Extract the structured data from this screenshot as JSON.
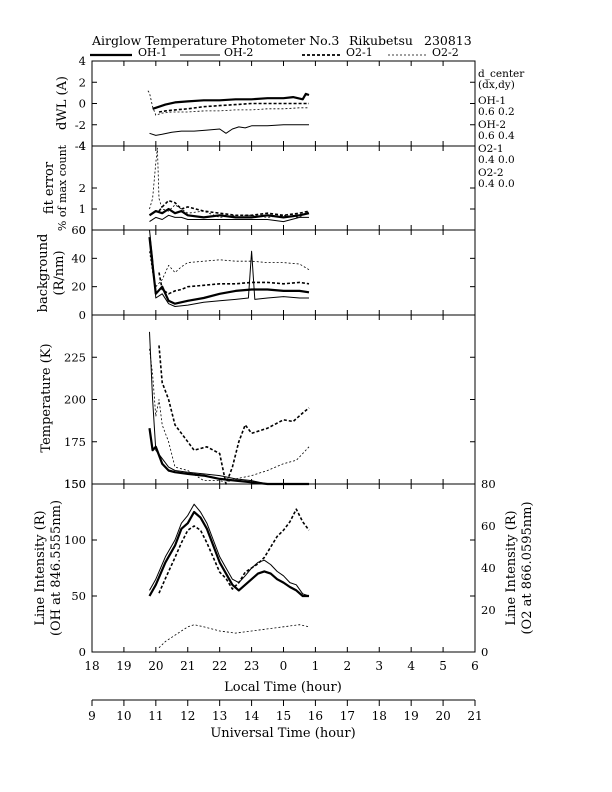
{
  "header": {
    "title": "Airglow Temperature Photometer No.3",
    "site": "Rikubetsu",
    "date": "230813"
  },
  "legend": {
    "items": [
      {
        "label": "OH-1",
        "style": "solid-thick"
      },
      {
        "label": "OH-2",
        "style": "solid-thin"
      },
      {
        "label": "O2-1",
        "style": "dashed-thick"
      },
      {
        "label": "O2-2",
        "style": "dashed-thin"
      }
    ]
  },
  "side_info": {
    "lines": [
      "d_center",
      "(dx,dy)",
      "OH-1",
      "0.6  0.2",
      "OH-2",
      "0.6  0.4",
      "O2-1",
      "0.4  0.0",
      "O2-2",
      "0.4  0.0"
    ]
  },
  "chart_data": {
    "type": "line",
    "x_axis_local": {
      "label": "Local Time (hour)",
      "range": [
        18,
        30
      ],
      "tick_labels": [
        "18",
        "19",
        "20",
        "21",
        "22",
        "23",
        "0",
        "1",
        "2",
        "3",
        "4",
        "5",
        "6"
      ]
    },
    "x_axis_universal": {
      "label": "Universal Time (hour)",
      "tick_labels": [
        "9",
        "10",
        "11",
        "12",
        "13",
        "14",
        "15",
        "16",
        "17",
        "18",
        "19",
        "20",
        "21"
      ]
    },
    "panels": [
      {
        "id": "dwl",
        "ylabel": "dWL (A)",
        "ylim": [
          -4,
          4
        ],
        "y_ticks": [
          "4",
          "2",
          "0",
          "-2",
          "-4"
        ],
        "series": [
          {
            "name": "OH-1",
            "style": "solid-thick",
            "x": [
              19.9,
              20.0,
              20.3,
              20.6,
              21.0,
              21.5,
              22.0,
              22.5,
              23.0,
              23.5,
              24.0,
              24.3,
              24.6,
              24.7,
              24.8
            ],
            "y": [
              -0.5,
              -0.4,
              -0.1,
              0.1,
              0.2,
              0.3,
              0.3,
              0.4,
              0.4,
              0.5,
              0.5,
              0.6,
              0.4,
              0.9,
              0.8
            ]
          },
          {
            "name": "OH-2",
            "style": "solid-thin",
            "x": [
              19.8,
              20.0,
              20.2,
              20.5,
              20.8,
              21.2,
              21.6,
              22.0,
              22.2,
              22.4,
              22.6,
              22.8,
              23.0,
              23.5,
              24.0,
              24.5,
              24.8
            ],
            "y": [
              -2.8,
              -3.0,
              -2.9,
              -2.7,
              -2.6,
              -2.6,
              -2.5,
              -2.4,
              -2.8,
              -2.4,
              -2.2,
              -2.3,
              -2.1,
              -2.1,
              -2.0,
              -2.0,
              -2.0
            ]
          },
          {
            "name": "O2-1",
            "style": "dashed-thick",
            "x": [
              20.1,
              20.3,
              20.6,
              21.0,
              21.5,
              22.0,
              22.5,
              23.0,
              23.5,
              24.0,
              24.5,
              24.8
            ],
            "y": [
              -0.8,
              -0.7,
              -0.6,
              -0.5,
              -0.3,
              -0.2,
              -0.1,
              0.0,
              0.0,
              0.0,
              0.0,
              0.0
            ]
          },
          {
            "name": "O2-2",
            "style": "dashed-thin",
            "x": [
              19.75,
              19.8,
              19.9,
              20.0,
              20.2,
              20.5,
              21.0,
              21.5,
              22.0,
              22.5,
              23.0,
              23.5,
              24.0,
              24.5,
              24.8
            ],
            "y": [
              1.2,
              1.0,
              -0.3,
              -1.1,
              -0.9,
              -0.8,
              -0.8,
              -0.7,
              -0.7,
              -0.6,
              -0.6,
              -0.5,
              -0.5,
              -0.4,
              -0.4
            ]
          }
        ]
      },
      {
        "id": "fiterror",
        "ylabel": [
          "fit error",
          "% of max count"
        ],
        "ylim": [
          0,
          4
        ],
        "y_ticks": [
          "4",
          "2",
          "1",
          "0"
        ],
        "y_tick_values": [
          4,
          2,
          1,
          0
        ],
        "series": [
          {
            "name": "OH-1",
            "style": "solid-thick",
            "x": [
              19.8,
              20.0,
              20.2,
              20.4,
              20.6,
              20.8,
              21.0,
              21.5,
              22.0,
              22.5,
              23.0,
              23.5,
              24.0,
              24.5,
              24.8
            ],
            "y": [
              0.7,
              0.9,
              0.8,
              1.0,
              0.8,
              0.9,
              0.7,
              0.6,
              0.7,
              0.6,
              0.6,
              0.7,
              0.6,
              0.7,
              0.8
            ]
          },
          {
            "name": "OH-2",
            "style": "solid-thin",
            "x": [
              19.8,
              20.0,
              20.2,
              20.4,
              20.6,
              20.8,
              21.0,
              21.5,
              22.0,
              22.5,
              23.0,
              23.5,
              24.0,
              24.5,
              24.8
            ],
            "y": [
              0.4,
              0.6,
              0.5,
              0.7,
              0.6,
              0.6,
              0.5,
              0.5,
              0.5,
              0.5,
              0.5,
              0.5,
              0.4,
              0.6,
              0.6
            ]
          },
          {
            "name": "O2-1",
            "style": "dashed-thick",
            "x": [
              20.1,
              20.2,
              20.4,
              20.6,
              20.8,
              21.0,
              21.5,
              22.0,
              22.5,
              23.0,
              23.5,
              24.0,
              24.5,
              24.8
            ],
            "y": [
              0.9,
              1.1,
              1.4,
              1.3,
              1.0,
              1.1,
              0.9,
              0.8,
              0.7,
              0.7,
              0.8,
              0.7,
              0.8,
              0.9
            ]
          },
          {
            "name": "O2-2",
            "style": "dashed-thin",
            "x": [
              19.8,
              19.9,
              20.0,
              20.05,
              20.1,
              20.2,
              20.4,
              20.6,
              20.8,
              21.0,
              21.5,
              22.0,
              22.5,
              23.0,
              23.5,
              24.0,
              24.5,
              24.8
            ],
            "y": [
              1.0,
              1.5,
              3.2,
              3.9,
              1.5,
              1.0,
              0.9,
              1.2,
              1.0,
              0.8,
              0.9,
              0.6,
              0.7,
              0.7,
              0.6,
              0.7,
              0.6,
              0.9
            ]
          }
        ]
      },
      {
        "id": "background",
        "ylabel": [
          "background",
          "(R/nm)"
        ],
        "ylim": [
          0,
          60
        ],
        "y_ticks": [
          "60",
          "40",
          "20",
          "0"
        ],
        "y_tick_values": [
          60,
          40,
          20,
          0
        ],
        "series": [
          {
            "name": "OH-1",
            "style": "solid-thick",
            "x": [
              19.8,
              19.9,
              20.0,
              20.2,
              20.4,
              20.6,
              21.0,
              21.5,
              22.0,
              22.5,
              23.0,
              23.5,
              24.0,
              24.5,
              24.8
            ],
            "y": [
              55,
              35,
              15,
              20,
              10,
              8,
              10,
              12,
              15,
              17,
              18,
              18,
              17,
              17,
              16
            ]
          },
          {
            "name": "OH-2",
            "style": "solid-thin",
            "x": [
              19.8,
              19.9,
              20.0,
              20.2,
              20.4,
              20.6,
              21.0,
              21.5,
              22.0,
              22.5,
              22.9,
              23.0,
              23.1,
              23.5,
              24.0,
              24.5,
              24.8
            ],
            "y": [
              60,
              40,
              12,
              15,
              8,
              6,
              7,
              9,
              10,
              11,
              12,
              45,
              11,
              12,
              13,
              12,
              12
            ]
          },
          {
            "name": "O2-1",
            "style": "dashed-thick",
            "x": [
              20.1,
              20.2,
              20.4,
              20.6,
              20.8,
              21.0,
              21.5,
              22.0,
              22.5,
              23.0,
              23.5,
              24.0,
              24.5,
              24.8
            ],
            "y": [
              30,
              18,
              15,
              17,
              18,
              20,
              21,
              22,
              22,
              23,
              23,
              22,
              23,
              22
            ]
          },
          {
            "name": "O2-2",
            "style": "dashed-thin",
            "x": [
              19.8,
              19.9,
              20.0,
              20.2,
              20.4,
              20.6,
              20.8,
              21.0,
              21.5,
              22.0,
              22.5,
              23.0,
              23.5,
              24.0,
              24.5,
              24.8
            ],
            "y": [
              45,
              30,
              20,
              25,
              35,
              30,
              34,
              37,
              38,
              39,
              38,
              38,
              37,
              37,
              36,
              32
            ]
          }
        ]
      },
      {
        "id": "temperature",
        "ylabel": "Temperature (K)",
        "ylim": [
          150,
          250
        ],
        "y_ticks": [
          "225",
          "200",
          "175",
          "150"
        ],
        "y_tick_values": [
          225,
          200,
          175,
          150
        ],
        "series": [
          {
            "name": "OH-1",
            "style": "solid-thick",
            "x": [
              19.8,
              19.9,
              20.0,
              20.2,
              20.4,
              20.6,
              21.0,
              21.5,
              22.0,
              22.5,
              23.0,
              23.5,
              24.0,
              24.5,
              24.8
            ],
            "y": [
              183,
              170,
              172,
              162,
              158,
              157,
              156,
              155,
              153,
              152,
              151,
              150,
              150,
              149,
              149
            ]
          },
          {
            "name": "OH-2",
            "style": "solid-thin",
            "x": [
              19.8,
              19.9,
              20.0,
              20.2,
              20.4,
              20.6,
              21.0,
              21.5,
              22.0,
              22.5,
              23.0,
              23.5,
              24.0,
              24.5,
              24.8
            ],
            "y": [
              240,
              200,
              170,
              165,
              160,
              158,
              157,
              156,
              155,
              153,
              152,
              150,
              150,
              150,
              150
            ]
          },
          {
            "name": "O2-1",
            "style": "dashed-thick",
            "x": [
              20.1,
              20.2,
              20.4,
              20.6,
              20.8,
              21.0,
              21.2,
              21.6,
              22.0,
              22.2,
              22.4,
              22.6,
              22.8,
              23.0,
              23.5,
              24.0,
              24.3,
              24.6,
              24.8
            ],
            "y": [
              232,
              210,
              200,
              185,
              180,
              175,
              170,
              172,
              168,
              150,
              160,
              175,
              185,
              180,
              183,
              188,
              187,
              192,
              195
            ]
          },
          {
            "name": "O2-2",
            "style": "dashed-thin",
            "x": [
              19.8,
              19.9,
              20.0,
              20.1,
              20.2,
              20.4,
              20.6,
              21.0,
              21.5,
              22.0,
              22.2,
              22.5,
              23.0,
              23.5,
              24.0,
              24.4,
              24.6,
              24.8
            ],
            "y": [
              230,
              215,
              190,
              200,
              185,
              175,
              160,
              158,
              152,
              152,
              151,
              153,
              155,
              158,
              162,
              164,
              168,
              172
            ]
          }
        ]
      },
      {
        "id": "intensity",
        "ylabel": [
          "Line Intensity (R)",
          "(OH at 846.5555nm)"
        ],
        "ylim": [
          0,
          150
        ],
        "y_ticks": [
          "150",
          "100",
          "50",
          "0"
        ],
        "y_tick_values": [
          150,
          100,
          50,
          0
        ],
        "y2label": [
          "Line Intensity (R)",
          "(O2 at 866.0595nm)"
        ],
        "y2lim": [
          0,
          80
        ],
        "y2_ticks": [
          "80",
          "60",
          "40",
          "20",
          "0"
        ],
        "y2_tick_values": [
          80,
          60,
          40,
          20,
          0
        ],
        "series": [
          {
            "name": "OH-1",
            "style": "solid-thick",
            "axis": "left",
            "x": [
              19.8,
              20.0,
              20.3,
              20.6,
              20.8,
              21.0,
              21.2,
              21.4,
              21.6,
              21.8,
              22.0,
              22.2,
              22.4,
              22.6,
              22.8,
              23.0,
              23.2,
              23.4,
              23.6,
              23.8,
              24.0,
              24.2,
              24.4,
              24.6,
              24.8
            ],
            "y": [
              50,
              60,
              80,
              95,
              110,
              115,
              125,
              120,
              110,
              95,
              80,
              70,
              60,
              55,
              60,
              65,
              70,
              72,
              70,
              65,
              62,
              58,
              55,
              50,
              50
            ]
          },
          {
            "name": "OH-2",
            "style": "solid-thin",
            "axis": "left",
            "x": [
              19.8,
              20.0,
              20.3,
              20.6,
              20.8,
              21.0,
              21.2,
              21.4,
              21.6,
              21.8,
              22.0,
              22.2,
              22.4,
              22.6,
              22.8,
              23.0,
              23.2,
              23.4,
              23.6,
              23.8,
              24.0,
              24.2,
              24.4,
              24.6,
              24.8
            ],
            "y": [
              55,
              65,
              85,
              100,
              115,
              122,
              132,
              125,
              115,
              100,
              85,
              75,
              65,
              62,
              68,
              75,
              80,
              82,
              78,
              72,
              68,
              62,
              60,
              52,
              50
            ]
          },
          {
            "name": "O2-1",
            "style": "dashed-thick",
            "axis": "right",
            "x": [
              20.1,
              20.3,
              20.6,
              20.8,
              21.0,
              21.2,
              21.4,
              21.6,
              21.8,
              22.0,
              22.2,
              22.4,
              22.6,
              22.8,
              23.0,
              23.2,
              23.4,
              23.6,
              23.8,
              24.0,
              24.2,
              24.4,
              24.6,
              24.8
            ],
            "y": [
              28,
              35,
              45,
              52,
              58,
              60,
              58,
              52,
              45,
              38,
              35,
              30,
              33,
              38,
              40,
              42,
              45,
              50,
              55,
              58,
              62,
              68,
              62,
              58
            ]
          },
          {
            "name": "O2-2",
            "style": "dashed-thin",
            "axis": "right",
            "x": [
              20.1,
              20.3,
              20.6,
              20.8,
              21.0,
              21.2,
              21.5,
              22.0,
              22.5,
              23.0,
              23.5,
              24.0,
              24.5,
              24.8
            ],
            "y": [
              2,
              5,
              8,
              10,
              12,
              13,
              12,
              10,
              9,
              10,
              11,
              12,
              13,
              12
            ]
          }
        ]
      }
    ]
  }
}
